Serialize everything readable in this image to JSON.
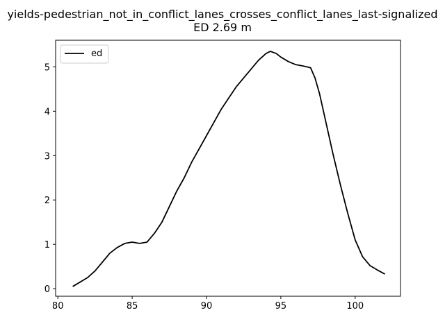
{
  "chart_data": {
    "type": "line",
    "title_line1": "yields-pedestrian_not_in_conflict_lanes_crosses_conflict_lanes_last-signalized",
    "title_line2": "ED 2.69 m",
    "xlabel": "",
    "ylabel": "",
    "xlim": [
      79.85,
      103.05
    ],
    "ylim": [
      -0.17,
      5.6
    ],
    "x_ticks": [
      80,
      85,
      90,
      95,
      100
    ],
    "y_ticks": [
      0,
      1,
      2,
      3,
      4,
      5
    ],
    "grid": false,
    "legend_position": "top-left",
    "series": [
      {
        "name": "ed",
        "color": "#000000",
        "x": [
          81.0,
          81.5,
          82.0,
          82.5,
          83.0,
          83.5,
          84.0,
          84.5,
          85.0,
          85.5,
          86.0,
          86.5,
          87.0,
          87.5,
          88.0,
          88.5,
          89.0,
          89.5,
          90.0,
          90.5,
          91.0,
          91.5,
          92.0,
          92.5,
          93.0,
          93.5,
          94.0,
          94.3,
          94.7,
          95.0,
          95.5,
          96.0,
          96.5,
          97.0,
          97.3,
          97.6,
          98.0,
          98.5,
          99.0,
          99.5,
          100.0,
          100.5,
          101.0,
          101.5,
          102.0
        ],
        "y": [
          0.05,
          0.15,
          0.25,
          0.4,
          0.6,
          0.8,
          0.93,
          1.02,
          1.05,
          1.02,
          1.05,
          1.25,
          1.5,
          1.85,
          2.2,
          2.5,
          2.85,
          3.15,
          3.45,
          3.75,
          4.05,
          4.3,
          4.55,
          4.75,
          4.95,
          5.15,
          5.3,
          5.35,
          5.3,
          5.22,
          5.12,
          5.05,
          5.02,
          4.98,
          4.75,
          4.4,
          3.8,
          3.05,
          2.35,
          1.7,
          1.1,
          0.72,
          0.52,
          0.42,
          0.33
        ]
      }
    ]
  }
}
